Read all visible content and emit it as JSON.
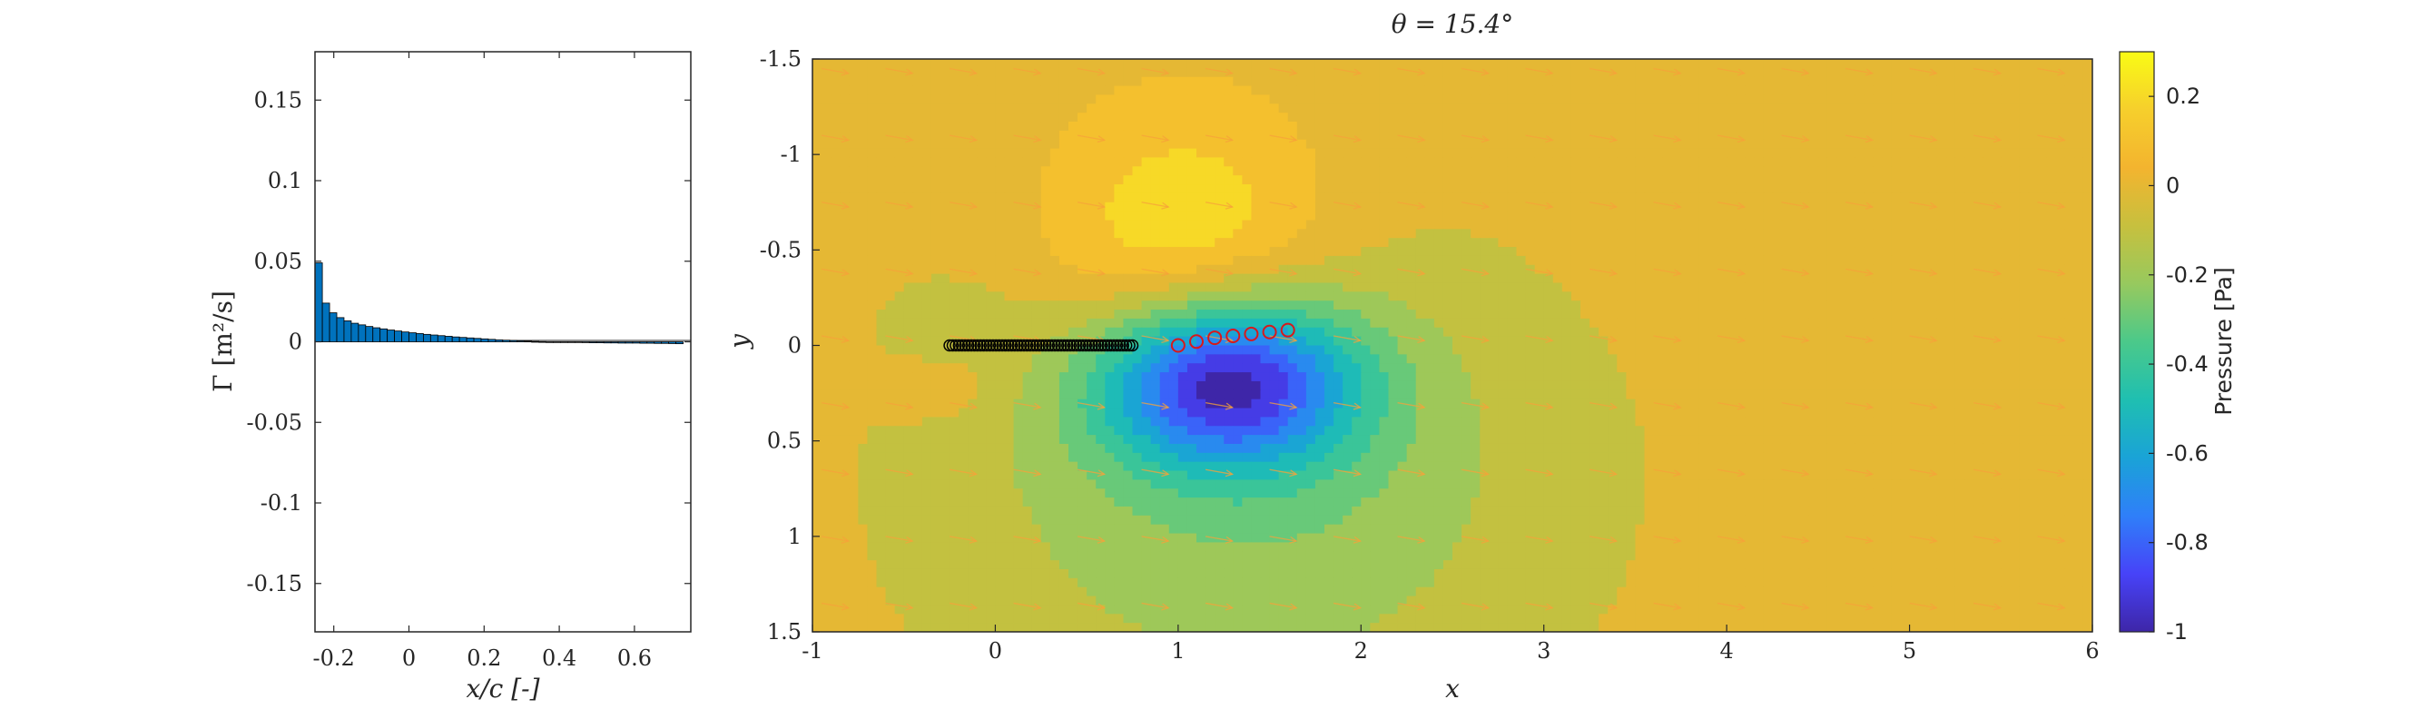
{
  "colors": {
    "bar_fill": "#0072BD",
    "bar_edge": "#000000",
    "axis": "#262626",
    "quiver": "#f7a23a",
    "chord_marker": "#000000",
    "wake_marker": "#d7191c",
    "colormap": [
      "#3e26a8",
      "#4743f8",
      "#2f7ff9",
      "#1aa3d7",
      "#1fbfb1",
      "#4bc98a",
      "#97c95e",
      "#c7c03e",
      "#f3b42f",
      "#f6cf2c",
      "#f9fb15"
    ]
  },
  "chart_data": [
    {
      "type": "bar",
      "title": "",
      "xlabel": "x/c [-]",
      "ylabel": "Γ [m²/s]",
      "xlim": [
        -0.25,
        0.75
      ],
      "ylim": [
        -0.18,
        0.18
      ],
      "xticks": [
        -0.2,
        0,
        0.2,
        0.4,
        0.6
      ],
      "xtick_labels": [
        "-0.2",
        "0",
        "0.2",
        "0.4",
        "0.6"
      ],
      "yticks": [
        -0.15,
        -0.1,
        -0.05,
        0,
        0.05,
        0.1,
        0.15
      ],
      "ytick_labels": [
        "-0.15",
        "-0.1",
        "-0.05",
        "0",
        "0.05",
        "0.1",
        "0.15"
      ],
      "bar_width": 0.0192,
      "x": [
        -0.24,
        -0.2208,
        -0.2016,
        -0.1824,
        -0.1632,
        -0.144,
        -0.1248,
        -0.1056,
        -0.0864,
        -0.0672,
        -0.048,
        -0.0288,
        -0.0096,
        0.0096,
        0.0288,
        0.048,
        0.0672,
        0.0864,
        0.1056,
        0.1248,
        0.144,
        0.1632,
        0.1824,
        0.2016,
        0.2208,
        0.24,
        0.2592,
        0.2784,
        0.2976,
        0.3168,
        0.336,
        0.3552,
        0.3744,
        0.3936,
        0.4128,
        0.432,
        0.4512,
        0.4704,
        0.4896,
        0.5088,
        0.528,
        0.5472,
        0.5664,
        0.5856,
        0.6048,
        0.624,
        0.6432,
        0.6624,
        0.6816,
        0.7008,
        0.72
      ],
      "values": [
        0.049,
        0.024,
        0.018,
        0.015,
        0.013,
        0.0115,
        0.0105,
        0.0095,
        0.0087,
        0.008,
        0.0073,
        0.0067,
        0.0061,
        0.0056,
        0.0051,
        0.0046,
        0.0042,
        0.0038,
        0.0034,
        0.003,
        0.0027,
        0.0024,
        0.0021,
        0.0018,
        0.0015,
        0.0012,
        0.001,
        0.0008,
        0.0006,
        0.0004,
        0.0002,
        0.0001,
        0.0,
        -0.0001,
        -0.0002,
        -0.0003,
        -0.0004,
        -0.0005,
        -0.0006,
        -0.0006,
        -0.0007,
        -0.0007,
        -0.0008,
        -0.0008,
        -0.0008,
        -0.0009,
        -0.0009,
        -0.001,
        -0.001,
        -0.0011,
        -0.0012
      ]
    },
    {
      "type": "heatmap",
      "title": "θ = 15.4°",
      "xlabel": "x",
      "ylabel": "y",
      "xlim": [
        -1,
        6
      ],
      "ylim": [
        -1.5,
        1.5
      ],
      "y_axis_reversed": true,
      "xticks": [
        -1,
        0,
        1,
        2,
        3,
        4,
        5,
        6
      ],
      "xtick_labels": [
        "-1",
        "0",
        "1",
        "2",
        "3",
        "4",
        "5",
        "6"
      ],
      "yticks": [
        -1.5,
        -1,
        -0.5,
        0,
        0.5,
        1,
        1.5
      ],
      "ytick_labels": [
        "-1.5",
        "-1",
        "-0.5",
        "0",
        "0.5",
        "1",
        "1.5"
      ],
      "colorbar": {
        "label": "Pressure [Pa]",
        "clim": [
          -1,
          0.3
        ],
        "ticks": [
          -1,
          -0.8,
          -0.6,
          -0.4,
          -0.2,
          0,
          0.2
        ],
        "tick_labels": [
          "-1",
          "-0.8",
          "-0.6",
          "-0.4",
          "-0.2",
          "0",
          "0.2"
        ]
      },
      "pressure_sources": [
        {
          "x": 1.05,
          "y": -0.42,
          "strength": 0.34,
          "sx": 0.55,
          "sy": 0.55
        },
        {
          "x": 1.25,
          "y": 0.18,
          "strength": -0.95,
          "sx": 0.5,
          "sy": 0.32
        },
        {
          "x": 1.4,
          "y": 0.7,
          "strength": -0.25,
          "sx": 1.2,
          "sy": 0.9
        },
        {
          "x": -0.25,
          "y": -0.1,
          "strength": -0.08,
          "sx": 0.22,
          "sy": 0.15
        },
        {
          "x": -0.25,
          "y": 0.2,
          "strength": 0.08,
          "sx": 0.22,
          "sy": 0.15
        }
      ],
      "chord_markers": {
        "x_start": -0.25,
        "x_end": 0.75,
        "count": 60,
        "y": 0.0
      },
      "wake_markers": [
        {
          "x": 1.0,
          "y": 0.0
        },
        {
          "x": 1.1,
          "y": -0.02
        },
        {
          "x": 1.2,
          "y": -0.04
        },
        {
          "x": 1.3,
          "y": -0.05
        },
        {
          "x": 1.4,
          "y": -0.06
        },
        {
          "x": 1.5,
          "y": -0.07
        },
        {
          "x": 1.6,
          "y": -0.08
        }
      ],
      "quiver": {
        "x_step": 0.35,
        "y_step": 0.35,
        "direction_deg": 10
      }
    }
  ]
}
